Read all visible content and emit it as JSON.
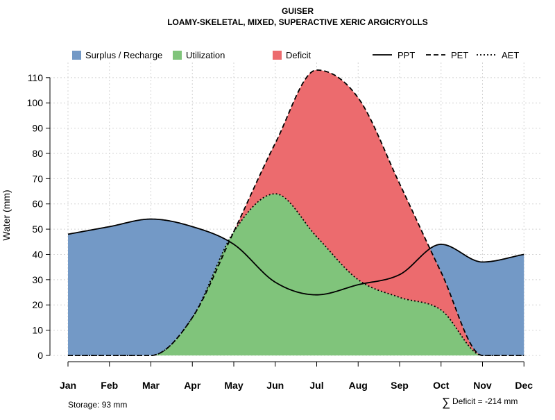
{
  "chart_data": {
    "type": "area",
    "title": "GUISER",
    "subtitle": "LOAMY-SKELETAL, MIXED, SUPERACTIVE XERIC ARGICRYOLLS",
    "ylabel": "Water (mm)",
    "xlabel": "",
    "ylim": [
      0,
      116
    ],
    "yticks": [
      0,
      10,
      20,
      30,
      40,
      50,
      60,
      70,
      80,
      90,
      100,
      110
    ],
    "categories": [
      "Jan",
      "Feb",
      "Mar",
      "Apr",
      "May",
      "Jun",
      "Jul",
      "Aug",
      "Sep",
      "Oct",
      "Nov",
      "Dec"
    ],
    "grid": true,
    "series": [
      {
        "name": "PPT",
        "style": "solid",
        "values": [
          48,
          51,
          54,
          51,
          44,
          29,
          24,
          28,
          32,
          44,
          37,
          40
        ]
      },
      {
        "name": "PET",
        "style": "dashed",
        "values": [
          0,
          0,
          0,
          15,
          49,
          84,
          113,
          102,
          68,
          33,
          0,
          0
        ]
      },
      {
        "name": "AET",
        "style": "dotted",
        "values": [
          0,
          0,
          0,
          15,
          49,
          64,
          47,
          30,
          23,
          18,
          0,
          0
        ]
      }
    ],
    "areas": [
      {
        "name": "Surplus / Recharge",
        "color": "#7399C6"
      },
      {
        "name": "Utilization",
        "color": "#80C47B"
      },
      {
        "name": "Deficit",
        "color": "#EC6B6E"
      }
    ],
    "line_legend": [
      "PPT",
      "PET",
      "AET"
    ],
    "legend_position": "top",
    "footer_left": "Storage: 93 mm",
    "footer_right_symbol": "∑",
    "footer_right": "Deficit = -214 mm"
  }
}
